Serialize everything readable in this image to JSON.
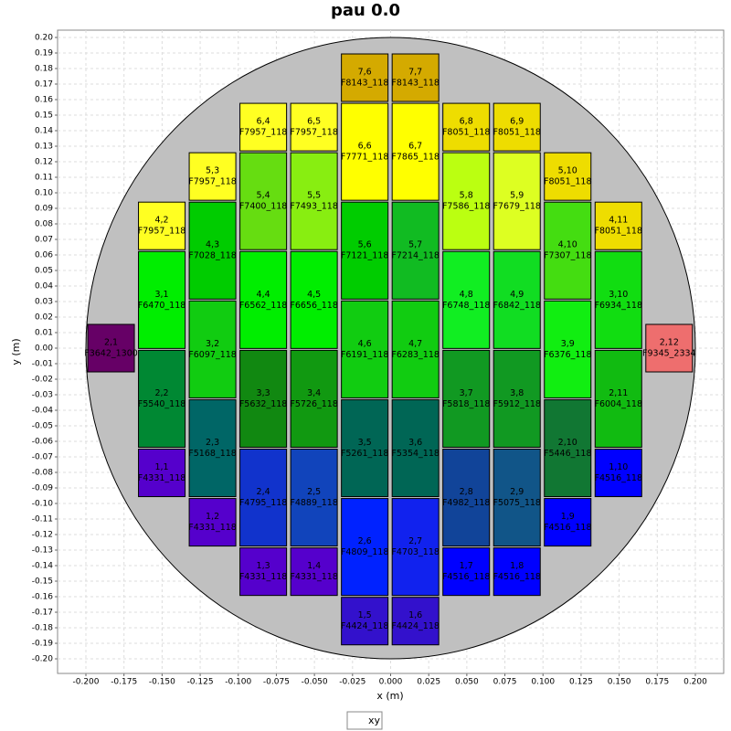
{
  "chart_data": {
    "type": "wafer-map",
    "title": "pau 0.0",
    "x_label": "x (m)",
    "y_label": "y (m)",
    "legend": "xy",
    "grid": true,
    "wafer_radius": 0.2,
    "wafer_color": "#c0c0c0",
    "xlim": [
      -0.2186,
      0.2186
    ],
    "ylim": [
      -0.2094,
      0.2047
    ],
    "xticks": [
      {
        "value": -0.2,
        "label": "-0.200"
      },
      {
        "value": -0.175,
        "label": "-0.175"
      },
      {
        "value": -0.15,
        "label": "-0.150"
      },
      {
        "value": -0.125,
        "label": "-0.125"
      },
      {
        "value": -0.1,
        "label": "-0.100"
      },
      {
        "value": -0.075,
        "label": "-0.075"
      },
      {
        "value": -0.05,
        "label": "-0.050"
      },
      {
        "value": -0.025,
        "label": "-0.025"
      },
      {
        "value": 0,
        "label": "0.000"
      },
      {
        "value": 0.025,
        "label": "0.025"
      },
      {
        "value": 0.05,
        "label": "0.050"
      },
      {
        "value": 0.075,
        "label": "0.075"
      },
      {
        "value": 0.1,
        "label": "0.100"
      },
      {
        "value": 0.125,
        "label": "0.125"
      },
      {
        "value": 0.15,
        "label": "0.150"
      },
      {
        "value": 0.175,
        "label": "0.175"
      },
      {
        "value": 0.2,
        "label": "0.200"
      }
    ],
    "yticks": [
      {
        "value": 0.2,
        "label": "0.20"
      },
      {
        "value": 0.19,
        "label": "0.19"
      },
      {
        "value": 0.18,
        "label": "0.18"
      },
      {
        "value": 0.17,
        "label": "0.17"
      },
      {
        "value": 0.16,
        "label": "0.16"
      },
      {
        "value": 0.15,
        "label": "0.15"
      },
      {
        "value": 0.14,
        "label": "0.14"
      },
      {
        "value": 0.13,
        "label": "0.13"
      },
      {
        "value": 0.12,
        "label": "0.12"
      },
      {
        "value": 0.11,
        "label": "0.11"
      },
      {
        "value": 0.1,
        "label": "0.10"
      },
      {
        "value": 0.09,
        "label": "0.09"
      },
      {
        "value": 0.08,
        "label": "0.08"
      },
      {
        "value": 0.07,
        "label": "0.07"
      },
      {
        "value": 0.06,
        "label": "0.06"
      },
      {
        "value": 0.05,
        "label": "0.05"
      },
      {
        "value": 0.04,
        "label": "0.04"
      },
      {
        "value": 0.03,
        "label": "0.03"
      },
      {
        "value": 0.02,
        "label": "0.02"
      },
      {
        "value": 0.01,
        "label": "0.01"
      },
      {
        "value": 0,
        "label": "0.00"
      },
      {
        "value": -0.01,
        "label": "-0.01"
      },
      {
        "value": -0.02,
        "label": "-0.02"
      },
      {
        "value": -0.03,
        "label": "-0.03"
      },
      {
        "value": -0.04,
        "label": "-0.04"
      },
      {
        "value": -0.05,
        "label": "-0.05"
      },
      {
        "value": -0.06,
        "label": "-0.06"
      },
      {
        "value": -0.07,
        "label": "-0.07"
      },
      {
        "value": -0.08,
        "label": "-0.08"
      },
      {
        "value": -0.09,
        "label": "-0.09"
      },
      {
        "value": -0.1,
        "label": "-0.10"
      },
      {
        "value": -0.11,
        "label": "-0.11"
      },
      {
        "value": -0.12,
        "label": "-0.12"
      },
      {
        "value": -0.13,
        "label": "-0.13"
      },
      {
        "value": -0.14,
        "label": "-0.14"
      },
      {
        "value": -0.15,
        "label": "-0.15"
      },
      {
        "value": -0.16,
        "label": "-0.16"
      },
      {
        "value": -0.17,
        "label": "-0.17"
      },
      {
        "value": -0.18,
        "label": "-0.18"
      },
      {
        "value": -0.19,
        "label": "-0.19"
      },
      {
        "value": -0.2,
        "label": "-0.20"
      }
    ],
    "dies": [
      {
        "label": "2,1",
        "name": "F3642_1300",
        "x": [
          -0.1988,
          -0.1682
        ],
        "y": [
          -0.0153,
          0.0153
        ],
        "color": "#660066"
      },
      {
        "label": "4,2",
        "name": "F7957_118",
        "x": [
          -0.1655,
          -0.1349
        ],
        "y": [
          0.0634,
          0.094
        ],
        "color": "#ffff22"
      },
      {
        "label": "3,1",
        "name": "F6470_118",
        "x": [
          -0.1655,
          -0.1349
        ],
        "y": [
          -0.0002,
          0.0622
        ],
        "color": "#00ee00"
      },
      {
        "label": "2,2",
        "name": "F5540_118",
        "x": [
          -0.1655,
          -0.1349
        ],
        "y": [
          -0.0638,
          -0.0014
        ],
        "color": "#008833"
      },
      {
        "label": "1,1",
        "name": "F4331_118",
        "x": [
          -0.1655,
          -0.1349
        ],
        "y": [
          -0.0956,
          -0.065
        ],
        "color": "#5500cc"
      },
      {
        "label": "5,3",
        "name": "F7957_118",
        "x": [
          -0.1322,
          -0.1016
        ],
        "y": [
          0.0952,
          0.1258
        ],
        "color": "#ffff22"
      },
      {
        "label": "4,3",
        "name": "F7028_118",
        "x": [
          -0.1322,
          -0.1016
        ],
        "y": [
          0.0316,
          0.094
        ],
        "color": "#00cc00"
      },
      {
        "label": "3,2",
        "name": "F6097_118",
        "x": [
          -0.1322,
          -0.1016
        ],
        "y": [
          -0.032,
          0.0304
        ],
        "color": "#11cc11"
      },
      {
        "label": "2,3",
        "name": "F5168_118",
        "x": [
          -0.1322,
          -0.1016
        ],
        "y": [
          -0.0956,
          -0.0332
        ],
        "color": "#006666"
      },
      {
        "label": "1,2",
        "name": "F4331_118",
        "x": [
          -0.1322,
          -0.1016
        ],
        "y": [
          -0.1274,
          -0.0968
        ],
        "color": "#5500cc"
      },
      {
        "label": "6,4",
        "name": "F7957_118",
        "x": [
          -0.0989,
          -0.0683
        ],
        "y": [
          0.127,
          0.1576
        ],
        "color": "#ffff22"
      },
      {
        "label": "5,4",
        "name": "F7400_118",
        "x": [
          -0.0989,
          -0.0683
        ],
        "y": [
          0.0634,
          0.1258
        ],
        "color": "#66dd11"
      },
      {
        "label": "4,4",
        "name": "F6562_118",
        "x": [
          -0.0989,
          -0.0683
        ],
        "y": [
          -0.0002,
          0.0622
        ],
        "color": "#00ee00"
      },
      {
        "label": "3,3",
        "name": "F5632_118",
        "x": [
          -0.0989,
          -0.0683
        ],
        "y": [
          -0.0638,
          -0.0014
        ],
        "color": "#118811"
      },
      {
        "label": "2,4",
        "name": "F4795_118",
        "x": [
          -0.0989,
          -0.0683
        ],
        "y": [
          -0.1274,
          -0.065
        ],
        "color": "#1133cc"
      },
      {
        "label": "1,3",
        "name": "F4331_118",
        "x": [
          -0.0989,
          -0.0683
        ],
        "y": [
          -0.1592,
          -0.1286
        ],
        "color": "#5500cc"
      },
      {
        "label": "6,5",
        "name": "F7957_118",
        "x": [
          -0.0656,
          -0.035
        ],
        "y": [
          0.127,
          0.1576
        ],
        "color": "#ffff22"
      },
      {
        "label": "5,5",
        "name": "F7493_118",
        "x": [
          -0.0656,
          -0.035
        ],
        "y": [
          0.0634,
          0.1258
        ],
        "color": "#88ee11"
      },
      {
        "label": "4,5",
        "name": "F6656_118",
        "x": [
          -0.0656,
          -0.035
        ],
        "y": [
          -0.0002,
          0.0622
        ],
        "color": "#00ee00"
      },
      {
        "label": "3,4",
        "name": "F5726_118",
        "x": [
          -0.0656,
          -0.035
        ],
        "y": [
          -0.0638,
          -0.0014
        ],
        "color": "#119911"
      },
      {
        "label": "2,5",
        "name": "F4889_118",
        "x": [
          -0.0656,
          -0.035
        ],
        "y": [
          -0.1274,
          -0.065
        ],
        "color": "#1144bb"
      },
      {
        "label": "1,4",
        "name": "F4331_118",
        "x": [
          -0.0656,
          -0.035
        ],
        "y": [
          -0.1592,
          -0.1286
        ],
        "color": "#5500cc"
      },
      {
        "label": "7,6",
        "name": "F8143_118",
        "x": [
          -0.0323,
          -0.0017
        ],
        "y": [
          0.1588,
          0.1894
        ],
        "color": "#d4aa00"
      },
      {
        "label": "6,6",
        "name": "F7771_118",
        "x": [
          -0.0323,
          -0.0017
        ],
        "y": [
          0.0952,
          0.1576
        ],
        "color": "#ffff00"
      },
      {
        "label": "5,6",
        "name": "F7121_118",
        "x": [
          -0.0323,
          -0.0017
        ],
        "y": [
          0.0316,
          0.094
        ],
        "color": "#00cc00"
      },
      {
        "label": "4,6",
        "name": "F6191_118",
        "x": [
          -0.0323,
          -0.0017
        ],
        "y": [
          -0.032,
          0.0304
        ],
        "color": "#11cc11"
      },
      {
        "label": "3,5",
        "name": "F5261_118",
        "x": [
          -0.0323,
          -0.0017
        ],
        "y": [
          -0.0956,
          -0.0332
        ],
        "color": "#006655"
      },
      {
        "label": "2,6",
        "name": "F4809_118",
        "x": [
          -0.0323,
          -0.0017
        ],
        "y": [
          -0.1592,
          -0.0968
        ],
        "color": "#0022ff"
      },
      {
        "label": "1,5",
        "name": "F4424_118",
        "x": [
          -0.0323,
          -0.0017
        ],
        "y": [
          -0.191,
          -0.1604
        ],
        "color": "#3311cc"
      },
      {
        "label": "7,7",
        "name": "F8143_118",
        "x": [
          0.001,
          0.0316
        ],
        "y": [
          0.1588,
          0.1894
        ],
        "color": "#d4aa00"
      },
      {
        "label": "6,7",
        "name": "F7865_118",
        "x": [
          0.001,
          0.0316
        ],
        "y": [
          0.0952,
          0.1576
        ],
        "color": "#ffff00"
      },
      {
        "label": "5,7",
        "name": "F7214_118",
        "x": [
          0.001,
          0.0316
        ],
        "y": [
          0.0316,
          0.094
        ],
        "color": "#11bb22"
      },
      {
        "label": "4,7",
        "name": "F6283_118",
        "x": [
          0.001,
          0.0316
        ],
        "y": [
          -0.032,
          0.0304
        ],
        "color": "#11cc11"
      },
      {
        "label": "3,6",
        "name": "F5354_118",
        "x": [
          0.001,
          0.0316
        ],
        "y": [
          -0.0956,
          -0.0332
        ],
        "color": "#006655"
      },
      {
        "label": "2,7",
        "name": "F4703_118",
        "x": [
          0.001,
          0.0316
        ],
        "y": [
          -0.1592,
          -0.0968
        ],
        "color": "#1122ee"
      },
      {
        "label": "1,6",
        "name": "F4424_118",
        "x": [
          0.001,
          0.0316
        ],
        "y": [
          -0.191,
          -0.1604
        ],
        "color": "#3311cc"
      },
      {
        "label": "6,8",
        "name": "F8051_118",
        "x": [
          0.0343,
          0.0649
        ],
        "y": [
          0.127,
          0.1576
        ],
        "color": "#eedd00"
      },
      {
        "label": "5,8",
        "name": "F7586_118",
        "x": [
          0.0343,
          0.0649
        ],
        "y": [
          0.0634,
          0.1258
        ],
        "color": "#bbff11"
      },
      {
        "label": "4,8",
        "name": "F6748_118",
        "x": [
          0.0343,
          0.0649
        ],
        "y": [
          -0.0002,
          0.0622
        ],
        "color": "#11ee22"
      },
      {
        "label": "3,7",
        "name": "F5818_118",
        "x": [
          0.0343,
          0.0649
        ],
        "y": [
          -0.0638,
          -0.0014
        ],
        "color": "#119922"
      },
      {
        "label": "2,8",
        "name": "F4982_118",
        "x": [
          0.0343,
          0.0649
        ],
        "y": [
          -0.1274,
          -0.065
        ],
        "color": "#114499"
      },
      {
        "label": "1,7",
        "name": "F4516_118",
        "x": [
          0.0343,
          0.0649
        ],
        "y": [
          -0.1592,
          -0.1286
        ],
        "color": "#0000ff"
      },
      {
        "label": "6,9",
        "name": "F8051_118",
        "x": [
          0.0676,
          0.0982
        ],
        "y": [
          0.127,
          0.1576
        ],
        "color": "#eedd00"
      },
      {
        "label": "5,9",
        "name": "F7679_118",
        "x": [
          0.0676,
          0.0982
        ],
        "y": [
          0.0634,
          0.1258
        ],
        "color": "#ddff22"
      },
      {
        "label": "4,9",
        "name": "F6842_118",
        "x": [
          0.0676,
          0.0982
        ],
        "y": [
          -0.0002,
          0.0622
        ],
        "color": "#11dd22"
      },
      {
        "label": "3,8",
        "name": "F5912_118",
        "x": [
          0.0676,
          0.0982
        ],
        "y": [
          -0.0638,
          -0.0014
        ],
        "color": "#119922"
      },
      {
        "label": "2,9",
        "name": "F5075_118",
        "x": [
          0.0676,
          0.0982
        ],
        "y": [
          -0.1274,
          -0.065
        ],
        "color": "#115588"
      },
      {
        "label": "1,8",
        "name": "F4516_118",
        "x": [
          0.0676,
          0.0982
        ],
        "y": [
          -0.1592,
          -0.1286
        ],
        "color": "#0000ff"
      },
      {
        "label": "5,10",
        "name": "F8051_118",
        "x": [
          0.1009,
          0.1315
        ],
        "y": [
          0.0952,
          0.1258
        ],
        "color": "#eedd00"
      },
      {
        "label": "4,10",
        "name": "F7307_118",
        "x": [
          0.1009,
          0.1315
        ],
        "y": [
          0.0316,
          0.094
        ],
        "color": "#44dd11"
      },
      {
        "label": "3,9",
        "name": "F6376_118",
        "x": [
          0.1009,
          0.1315
        ],
        "y": [
          -0.032,
          0.0304
        ],
        "color": "#11ee11"
      },
      {
        "label": "2,10",
        "name": "F5446_118",
        "x": [
          0.1009,
          0.1315
        ],
        "y": [
          -0.0956,
          -0.0332
        ],
        "color": "#117733"
      },
      {
        "label": "1,9",
        "name": "F4516_118",
        "x": [
          0.1009,
          0.1315
        ],
        "y": [
          -0.1274,
          -0.0968
        ],
        "color": "#0000ff"
      },
      {
        "label": "4,11",
        "name": "F8051_118",
        "x": [
          0.1342,
          0.1648
        ],
        "y": [
          0.0634,
          0.094
        ],
        "color": "#eedd00"
      },
      {
        "label": "3,10",
        "name": "F6934_118",
        "x": [
          0.1342,
          0.1648
        ],
        "y": [
          -0.0002,
          0.0622
        ],
        "color": "#11dd11"
      },
      {
        "label": "2,11",
        "name": "F6004_118",
        "x": [
          0.1342,
          0.1648
        ],
        "y": [
          -0.0638,
          -0.0014
        ],
        "color": "#11bb11"
      },
      {
        "label": "1,10",
        "name": "F4516_118",
        "x": [
          0.1342,
          0.1648
        ],
        "y": [
          -0.0956,
          -0.065
        ],
        "color": "#0000ff"
      },
      {
        "label": "2,12",
        "name": "F9345_2334",
        "x": [
          0.1675,
          0.1981
        ],
        "y": [
          -0.0153,
          0.0153
        ],
        "color": "#ee6e6e"
      }
    ]
  }
}
